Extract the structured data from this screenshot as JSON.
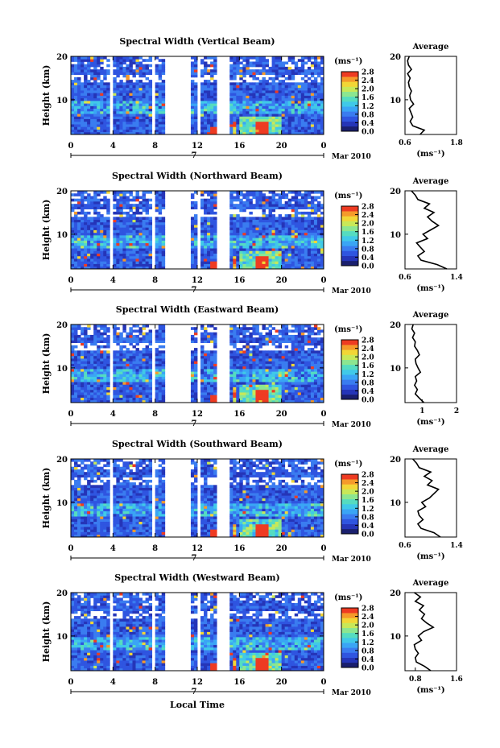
{
  "figure": {
    "xlabel": "Local Time",
    "date_label": "Mar 2010",
    "day_label": "7",
    "colorbar_unit": "(ms⁻¹)",
    "colorbar_ticks": [
      "0.0",
      "0.4",
      "0.8",
      "1.2",
      "1.6",
      "2.0",
      "2.4",
      "2.8"
    ],
    "colormap": [
      "#1a1f6e",
      "#2535b8",
      "#2f55e0",
      "#3a7cf0",
      "#3aa5f5",
      "#40c9e8",
      "#55dcc0",
      "#8ce690",
      "#c8e858",
      "#f2d636",
      "#f59a2a",
      "#ee3b22"
    ],
    "avg_title": "Average",
    "avg_xunit": "(ms⁻¹)"
  },
  "chart_data": [
    {
      "type": "heatmap",
      "title": "Spectral Width (Vertical Beam)",
      "ylabel": "Height (km)",
      "x_ticks": [
        "0",
        "4",
        "8",
        "12",
        "16",
        "20",
        "0"
      ],
      "xlim": [
        0,
        24
      ],
      "ylim": [
        2,
        20
      ],
      "y_ticks": [
        "20",
        "10"
      ],
      "value_range": [
        0.0,
        2.8
      ],
      "gaps_hours": [
        [
          3.75,
          3.95
        ],
        [
          7.8,
          8.0
        ],
        [
          8.8,
          11.3
        ],
        [
          11.55,
          11.7
        ],
        [
          12.1,
          12.3
        ],
        [
          13.9,
          15.2
        ]
      ],
      "average_profile": {
        "xlim": [
          0.6,
          1.8
        ],
        "x_ticks": [
          "0.6",
          "1.8"
        ],
        "y_ticks": [
          "20",
          "10"
        ],
        "height_km": [
          2,
          3,
          4,
          5,
          6,
          7,
          8,
          9,
          10,
          11,
          12,
          13,
          14,
          15,
          16,
          17,
          18,
          19,
          20
        ],
        "width_ms": [
          0.95,
          1.05,
          0.78,
          0.72,
          0.78,
          0.74,
          0.7,
          0.8,
          0.73,
          0.71,
          0.75,
          0.7,
          0.68,
          0.72,
          0.66,
          0.75,
          0.68,
          0.66,
          0.7
        ]
      }
    },
    {
      "type": "heatmap",
      "title": "Spectral Width (Northward Beam)",
      "ylabel": "Height (km)",
      "x_ticks": [
        "0",
        "4",
        "8",
        "12",
        "16",
        "20",
        "0"
      ],
      "xlim": [
        0,
        24
      ],
      "ylim": [
        2,
        20
      ],
      "y_ticks": [
        "20",
        "10"
      ],
      "value_range": [
        0.0,
        2.8
      ],
      "gaps_hours": [
        [
          3.75,
          3.95
        ],
        [
          7.8,
          8.0
        ],
        [
          8.8,
          11.3
        ],
        [
          11.55,
          11.7
        ],
        [
          12.1,
          12.3
        ],
        [
          13.9,
          15.2
        ]
      ],
      "average_profile": {
        "xlim": [
          0.6,
          1.4
        ],
        "x_ticks": [
          "0.6",
          "1.4"
        ],
        "y_ticks": [
          "20",
          "10"
        ],
        "height_km": [
          2,
          3,
          4,
          5,
          6,
          7,
          8,
          9,
          10,
          11,
          12,
          13,
          14,
          15,
          16,
          17,
          18,
          19,
          20
        ],
        "width_ms": [
          1.25,
          1.1,
          0.85,
          0.8,
          0.9,
          0.84,
          0.78,
          0.95,
          0.88,
          1.0,
          1.12,
          1.02,
          0.95,
          1.05,
          0.9,
          0.98,
          0.8,
          0.76,
          0.7
        ]
      }
    },
    {
      "type": "heatmap",
      "title": "Spectral Width (Eastward Beam)",
      "ylabel": "Height (km)",
      "x_ticks": [
        "0",
        "4",
        "8",
        "12",
        "16",
        "20",
        "0"
      ],
      "xlim": [
        0,
        24
      ],
      "ylim": [
        2,
        20
      ],
      "y_ticks": [
        "20",
        "10"
      ],
      "value_range": [
        0.0,
        2.8
      ],
      "gaps_hours": [
        [
          3.75,
          3.95
        ],
        [
          7.8,
          8.0
        ],
        [
          8.8,
          11.3
        ],
        [
          11.55,
          11.7
        ],
        [
          12.1,
          12.3
        ],
        [
          13.9,
          15.2
        ]
      ],
      "average_profile": {
        "xlim": [
          0.5,
          2.0
        ],
        "x_ticks": [
          "1",
          "2"
        ],
        "y_ticks": [
          "20",
          "10"
        ],
        "height_km": [
          2,
          3,
          4,
          5,
          6,
          7,
          8,
          9,
          10,
          11,
          12,
          13,
          14,
          15,
          16,
          17,
          18,
          19,
          20
        ],
        "width_ms": [
          1.05,
          0.92,
          0.8,
          0.86,
          0.78,
          0.84,
          0.8,
          0.95,
          0.88,
          0.82,
          0.8,
          0.92,
          0.86,
          0.78,
          0.8,
          0.72,
          0.78,
          0.7,
          0.74
        ]
      }
    },
    {
      "type": "heatmap",
      "title": "Spectral Width (Southward Beam)",
      "ylabel": "Height (km)",
      "x_ticks": [
        "0",
        "4",
        "8",
        "12",
        "16",
        "20",
        "0"
      ],
      "xlim": [
        0,
        24
      ],
      "ylim": [
        2,
        20
      ],
      "y_ticks": [
        "20",
        "10"
      ],
      "value_range": [
        0.0,
        2.8
      ],
      "gaps_hours": [
        [
          3.75,
          3.95
        ],
        [
          7.8,
          8.0
        ],
        [
          8.8,
          11.3
        ],
        [
          11.55,
          11.7
        ],
        [
          12.1,
          12.3
        ],
        [
          13.9,
          15.2
        ]
      ],
      "average_profile": {
        "xlim": [
          0.6,
          1.4
        ],
        "x_ticks": [
          "0.6",
          "1.4"
        ],
        "y_ticks": [
          "20",
          "10"
        ],
        "height_km": [
          2,
          3,
          4,
          5,
          6,
          7,
          8,
          9,
          10,
          11,
          12,
          13,
          14,
          15,
          16,
          17,
          18,
          19,
          20
        ],
        "width_ms": [
          1.15,
          1.05,
          0.85,
          0.8,
          0.88,
          0.82,
          0.8,
          0.92,
          0.86,
          0.98,
          1.05,
          1.12,
          0.95,
          1.02,
          0.9,
          1.0,
          0.82,
          0.78,
          0.72
        ]
      }
    },
    {
      "type": "heatmap",
      "title": "Spectral Width (Westward Beam)",
      "ylabel": "Height (km)",
      "x_ticks": [
        "0",
        "4",
        "8",
        "12",
        "16",
        "20",
        "0"
      ],
      "xlim": [
        0,
        24
      ],
      "ylim": [
        2,
        20
      ],
      "y_ticks": [
        "20",
        "10"
      ],
      "value_range": [
        0.0,
        2.8
      ],
      "gaps_hours": [
        [
          3.75,
          3.95
        ],
        [
          7.8,
          8.0
        ],
        [
          8.8,
          11.3
        ],
        [
          11.55,
          11.7
        ],
        [
          12.1,
          12.3
        ],
        [
          13.9,
          15.2
        ]
      ],
      "average_profile": {
        "xlim": [
          0.6,
          1.6
        ],
        "x_ticks": [
          "0.8",
          "1.6"
        ],
        "y_ticks": [
          "20",
          "10"
        ],
        "height_km": [
          2,
          3,
          4,
          5,
          6,
          7,
          8,
          9,
          10,
          11,
          12,
          13,
          14,
          15,
          16,
          17,
          18,
          19,
          20
        ],
        "width_ms": [
          1.1,
          0.98,
          0.82,
          0.8,
          0.86,
          0.8,
          0.78,
          0.92,
          0.86,
          0.96,
          1.15,
          1.02,
          0.92,
          0.98,
          0.88,
          0.96,
          0.8,
          0.9,
          0.78
        ]
      }
    }
  ]
}
